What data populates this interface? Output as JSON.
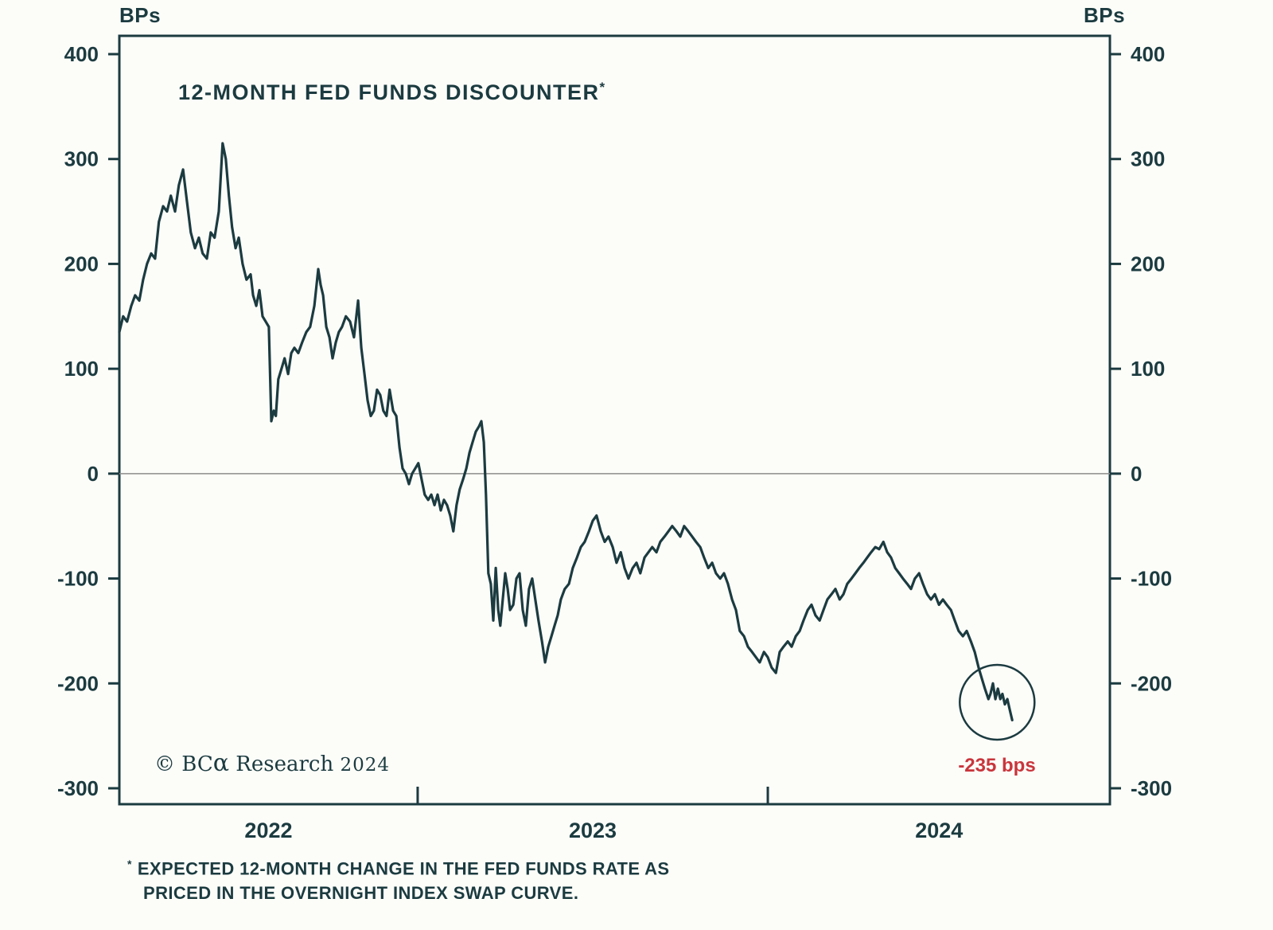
{
  "header": {
    "bps_left": "BPs",
    "bps_right": "BPs"
  },
  "chart_data": {
    "type": "line",
    "title": "12-MONTH FED FUNDS DISCOUNTER",
    "title_marker": "*",
    "unit": "BPs",
    "ylim": [
      -300,
      400
    ],
    "yticks": [
      400,
      300,
      200,
      100,
      0,
      -100,
      -200,
      -300
    ],
    "x_range": [
      2022.148,
      2024.977
    ],
    "x_boundary_ticks": [
      2023,
      2024
    ],
    "x_year_labels": [
      {
        "label": "2022",
        "center": 2022.574
      },
      {
        "label": "2023",
        "center": 2023.5
      },
      {
        "label": "2024",
        "center": 2024.489
      }
    ],
    "grid": "zero-line-only",
    "legend": "none",
    "frame_color": "#1b3b40",
    "zero_line_color": "#8c8c8c",
    "annotation": {
      "label": "-235 bps",
      "color": "#c9353c",
      "circle_center": [
        2024.655,
        -218
      ],
      "circle_radius_px": 47
    },
    "copyright": {
      "brand": "© BC",
      "alpha": "α",
      "rest": " Research ",
      "year": "2024"
    },
    "footnote": {
      "marker": "*",
      "line1": "EXPECTED 12-MONTH CHANGE IN THE FED FUNDS RATE AS",
      "line2": "PRICED IN THE OVERNIGHT INDEX SWAP CURVE."
    },
    "series": [
      {
        "name": "12-month fed funds discounter",
        "color": "#1b3b40",
        "points": [
          [
            2022.148,
            135
          ],
          [
            2022.159,
            150
          ],
          [
            2022.17,
            145
          ],
          [
            2022.182,
            160
          ],
          [
            2022.193,
            170
          ],
          [
            2022.205,
            165
          ],
          [
            2022.216,
            185
          ],
          [
            2022.227,
            200
          ],
          [
            2022.239,
            210
          ],
          [
            2022.25,
            205
          ],
          [
            2022.261,
            240
          ],
          [
            2022.273,
            255
          ],
          [
            2022.284,
            250
          ],
          [
            2022.295,
            265
          ],
          [
            2022.307,
            250
          ],
          [
            2022.318,
            275
          ],
          [
            2022.33,
            290
          ],
          [
            2022.341,
            260
          ],
          [
            2022.352,
            230
          ],
          [
            2022.364,
            215
          ],
          [
            2022.375,
            225
          ],
          [
            2022.386,
            210
          ],
          [
            2022.398,
            205
          ],
          [
            2022.409,
            230
          ],
          [
            2022.42,
            225
          ],
          [
            2022.432,
            250
          ],
          [
            2022.443,
            315
          ],
          [
            2022.452,
            300
          ],
          [
            2022.461,
            265
          ],
          [
            2022.47,
            235
          ],
          [
            2022.48,
            215
          ],
          [
            2022.489,
            225
          ],
          [
            2022.5,
            200
          ],
          [
            2022.511,
            185
          ],
          [
            2022.523,
            190
          ],
          [
            2022.53,
            170
          ],
          [
            2022.539,
            160
          ],
          [
            2022.548,
            175
          ],
          [
            2022.557,
            150
          ],
          [
            2022.566,
            145
          ],
          [
            2022.575,
            140
          ],
          [
            2022.582,
            50
          ],
          [
            2022.589,
            60
          ],
          [
            2022.595,
            55
          ],
          [
            2022.602,
            90
          ],
          [
            2022.611,
            100
          ],
          [
            2022.62,
            110
          ],
          [
            2022.63,
            95
          ],
          [
            2022.639,
            115
          ],
          [
            2022.648,
            120
          ],
          [
            2022.659,
            115
          ],
          [
            2022.67,
            125
          ],
          [
            2022.682,
            135
          ],
          [
            2022.693,
            140
          ],
          [
            2022.705,
            160
          ],
          [
            2022.716,
            195
          ],
          [
            2022.723,
            180
          ],
          [
            2022.73,
            170
          ],
          [
            2022.739,
            140
          ],
          [
            2022.748,
            130
          ],
          [
            2022.757,
            110
          ],
          [
            2022.766,
            125
          ],
          [
            2022.775,
            135
          ],
          [
            2022.784,
            140
          ],
          [
            2022.795,
            150
          ],
          [
            2022.807,
            145
          ],
          [
            2022.818,
            130
          ],
          [
            2022.83,
            165
          ],
          [
            2022.839,
            120
          ],
          [
            2022.848,
            95
          ],
          [
            2022.857,
            70
          ],
          [
            2022.866,
            55
          ],
          [
            2022.875,
            60
          ],
          [
            2022.884,
            80
          ],
          [
            2022.893,
            75
          ],
          [
            2022.902,
            60
          ],
          [
            2022.911,
            55
          ],
          [
            2022.92,
            80
          ],
          [
            2022.93,
            60
          ],
          [
            2022.939,
            55
          ],
          [
            2022.948,
            25
          ],
          [
            2022.957,
            5
          ],
          [
            2022.966,
            0
          ],
          [
            2022.975,
            -10
          ],
          [
            2022.984,
            0
          ],
          [
            2022.993,
            5
          ],
          [
            2023.002,
            10
          ],
          [
            2023.011,
            -5
          ],
          [
            2023.02,
            -20
          ],
          [
            2023.03,
            -25
          ],
          [
            2023.039,
            -20
          ],
          [
            2023.048,
            -30
          ],
          [
            2023.057,
            -20
          ],
          [
            2023.066,
            -35
          ],
          [
            2023.075,
            -25
          ],
          [
            2023.084,
            -30
          ],
          [
            2023.093,
            -40
          ],
          [
            2023.102,
            -55
          ],
          [
            2023.111,
            -30
          ],
          [
            2023.12,
            -15
          ],
          [
            2023.13,
            -5
          ],
          [
            2023.139,
            5
          ],
          [
            2023.148,
            20
          ],
          [
            2023.157,
            30
          ],
          [
            2023.166,
            40
          ],
          [
            2023.175,
            45
          ],
          [
            2023.182,
            50
          ],
          [
            2023.189,
            30
          ],
          [
            2023.195,
            -20
          ],
          [
            2023.202,
            -95
          ],
          [
            2023.209,
            -105
          ],
          [
            2023.216,
            -140
          ],
          [
            2023.223,
            -90
          ],
          [
            2023.23,
            -130
          ],
          [
            2023.236,
            -145
          ],
          [
            2023.243,
            -120
          ],
          [
            2023.25,
            -95
          ],
          [
            2023.257,
            -110
          ],
          [
            2023.264,
            -130
          ],
          [
            2023.273,
            -125
          ],
          [
            2023.282,
            -100
          ],
          [
            2023.291,
            -95
          ],
          [
            2023.3,
            -130
          ],
          [
            2023.309,
            -145
          ],
          [
            2023.318,
            -110
          ],
          [
            2023.327,
            -100
          ],
          [
            2023.336,
            -120
          ],
          [
            2023.345,
            -140
          ],
          [
            2023.355,
            -160
          ],
          [
            2023.364,
            -180
          ],
          [
            2023.373,
            -165
          ],
          [
            2023.382,
            -155
          ],
          [
            2023.391,
            -145
          ],
          [
            2023.4,
            -135
          ],
          [
            2023.409,
            -120
          ],
          [
            2023.42,
            -110
          ],
          [
            2023.432,
            -105
          ],
          [
            2023.443,
            -90
          ],
          [
            2023.455,
            -80
          ],
          [
            2023.466,
            -70
          ],
          [
            2023.477,
            -65
          ],
          [
            2023.489,
            -55
          ],
          [
            2023.5,
            -45
          ],
          [
            2023.511,
            -40
          ],
          [
            2023.523,
            -55
          ],
          [
            2023.534,
            -65
          ],
          [
            2023.545,
            -60
          ],
          [
            2023.557,
            -70
          ],
          [
            2023.568,
            -85
          ],
          [
            2023.58,
            -75
          ],
          [
            2023.591,
            -90
          ],
          [
            2023.602,
            -100
          ],
          [
            2023.614,
            -90
          ],
          [
            2023.625,
            -85
          ],
          [
            2023.636,
            -95
          ],
          [
            2023.648,
            -80
          ],
          [
            2023.659,
            -75
          ],
          [
            2023.67,
            -70
          ],
          [
            2023.682,
            -75
          ],
          [
            2023.693,
            -65
          ],
          [
            2023.705,
            -60
          ],
          [
            2023.716,
            -55
          ],
          [
            2023.727,
            -50
          ],
          [
            2023.739,
            -55
          ],
          [
            2023.75,
            -60
          ],
          [
            2023.761,
            -50
          ],
          [
            2023.773,
            -55
          ],
          [
            2023.784,
            -60
          ],
          [
            2023.795,
            -65
          ],
          [
            2023.807,
            -70
          ],
          [
            2023.818,
            -80
          ],
          [
            2023.83,
            -90
          ],
          [
            2023.841,
            -85
          ],
          [
            2023.852,
            -95
          ],
          [
            2023.864,
            -100
          ],
          [
            2023.875,
            -95
          ],
          [
            2023.886,
            -105
          ],
          [
            2023.898,
            -120
          ],
          [
            2023.909,
            -130
          ],
          [
            2023.92,
            -150
          ],
          [
            2023.932,
            -155
          ],
          [
            2023.943,
            -165
          ],
          [
            2023.955,
            -170
          ],
          [
            2023.966,
            -175
          ],
          [
            2023.977,
            -180
          ],
          [
            2023.989,
            -170
          ],
          [
            2024.0,
            -175
          ],
          [
            2024.011,
            -185
          ],
          [
            2024.023,
            -190
          ],
          [
            2024.034,
            -170
          ],
          [
            2024.045,
            -165
          ],
          [
            2024.057,
            -160
          ],
          [
            2024.068,
            -165
          ],
          [
            2024.08,
            -155
          ],
          [
            2024.091,
            -150
          ],
          [
            2024.102,
            -140
          ],
          [
            2024.114,
            -130
          ],
          [
            2024.125,
            -125
          ],
          [
            2024.136,
            -135
          ],
          [
            2024.148,
            -140
          ],
          [
            2024.159,
            -130
          ],
          [
            2024.17,
            -120
          ],
          [
            2024.182,
            -115
          ],
          [
            2024.193,
            -110
          ],
          [
            2024.205,
            -120
          ],
          [
            2024.216,
            -115
          ],
          [
            2024.227,
            -105
          ],
          [
            2024.239,
            -100
          ],
          [
            2024.25,
            -95
          ],
          [
            2024.261,
            -90
          ],
          [
            2024.273,
            -85
          ],
          [
            2024.284,
            -80
          ],
          [
            2024.295,
            -75
          ],
          [
            2024.307,
            -70
          ],
          [
            2024.318,
            -72
          ],
          [
            2024.33,
            -65
          ],
          [
            2024.341,
            -75
          ],
          [
            2024.352,
            -80
          ],
          [
            2024.364,
            -90
          ],
          [
            2024.375,
            -95
          ],
          [
            2024.386,
            -100
          ],
          [
            2024.398,
            -105
          ],
          [
            2024.409,
            -110
          ],
          [
            2024.42,
            -100
          ],
          [
            2024.432,
            -95
          ],
          [
            2024.443,
            -105
          ],
          [
            2024.455,
            -115
          ],
          [
            2024.466,
            -120
          ],
          [
            2024.477,
            -115
          ],
          [
            2024.489,
            -125
          ],
          [
            2024.5,
            -120
          ],
          [
            2024.511,
            -125
          ],
          [
            2024.523,
            -130
          ],
          [
            2024.534,
            -140
          ],
          [
            2024.545,
            -150
          ],
          [
            2024.557,
            -155
          ],
          [
            2024.568,
            -150
          ],
          [
            2024.58,
            -160
          ],
          [
            2024.591,
            -170
          ],
          [
            2024.602,
            -185
          ],
          [
            2024.611,
            -195
          ],
          [
            2024.62,
            -205
          ],
          [
            2024.63,
            -215
          ],
          [
            2024.636,
            -210
          ],
          [
            2024.643,
            -200
          ],
          [
            2024.65,
            -215
          ],
          [
            2024.657,
            -205
          ],
          [
            2024.664,
            -215
          ],
          [
            2024.67,
            -210
          ],
          [
            2024.677,
            -220
          ],
          [
            2024.684,
            -215
          ],
          [
            2024.691,
            -225
          ],
          [
            2024.698,
            -235
          ]
        ]
      }
    ]
  }
}
